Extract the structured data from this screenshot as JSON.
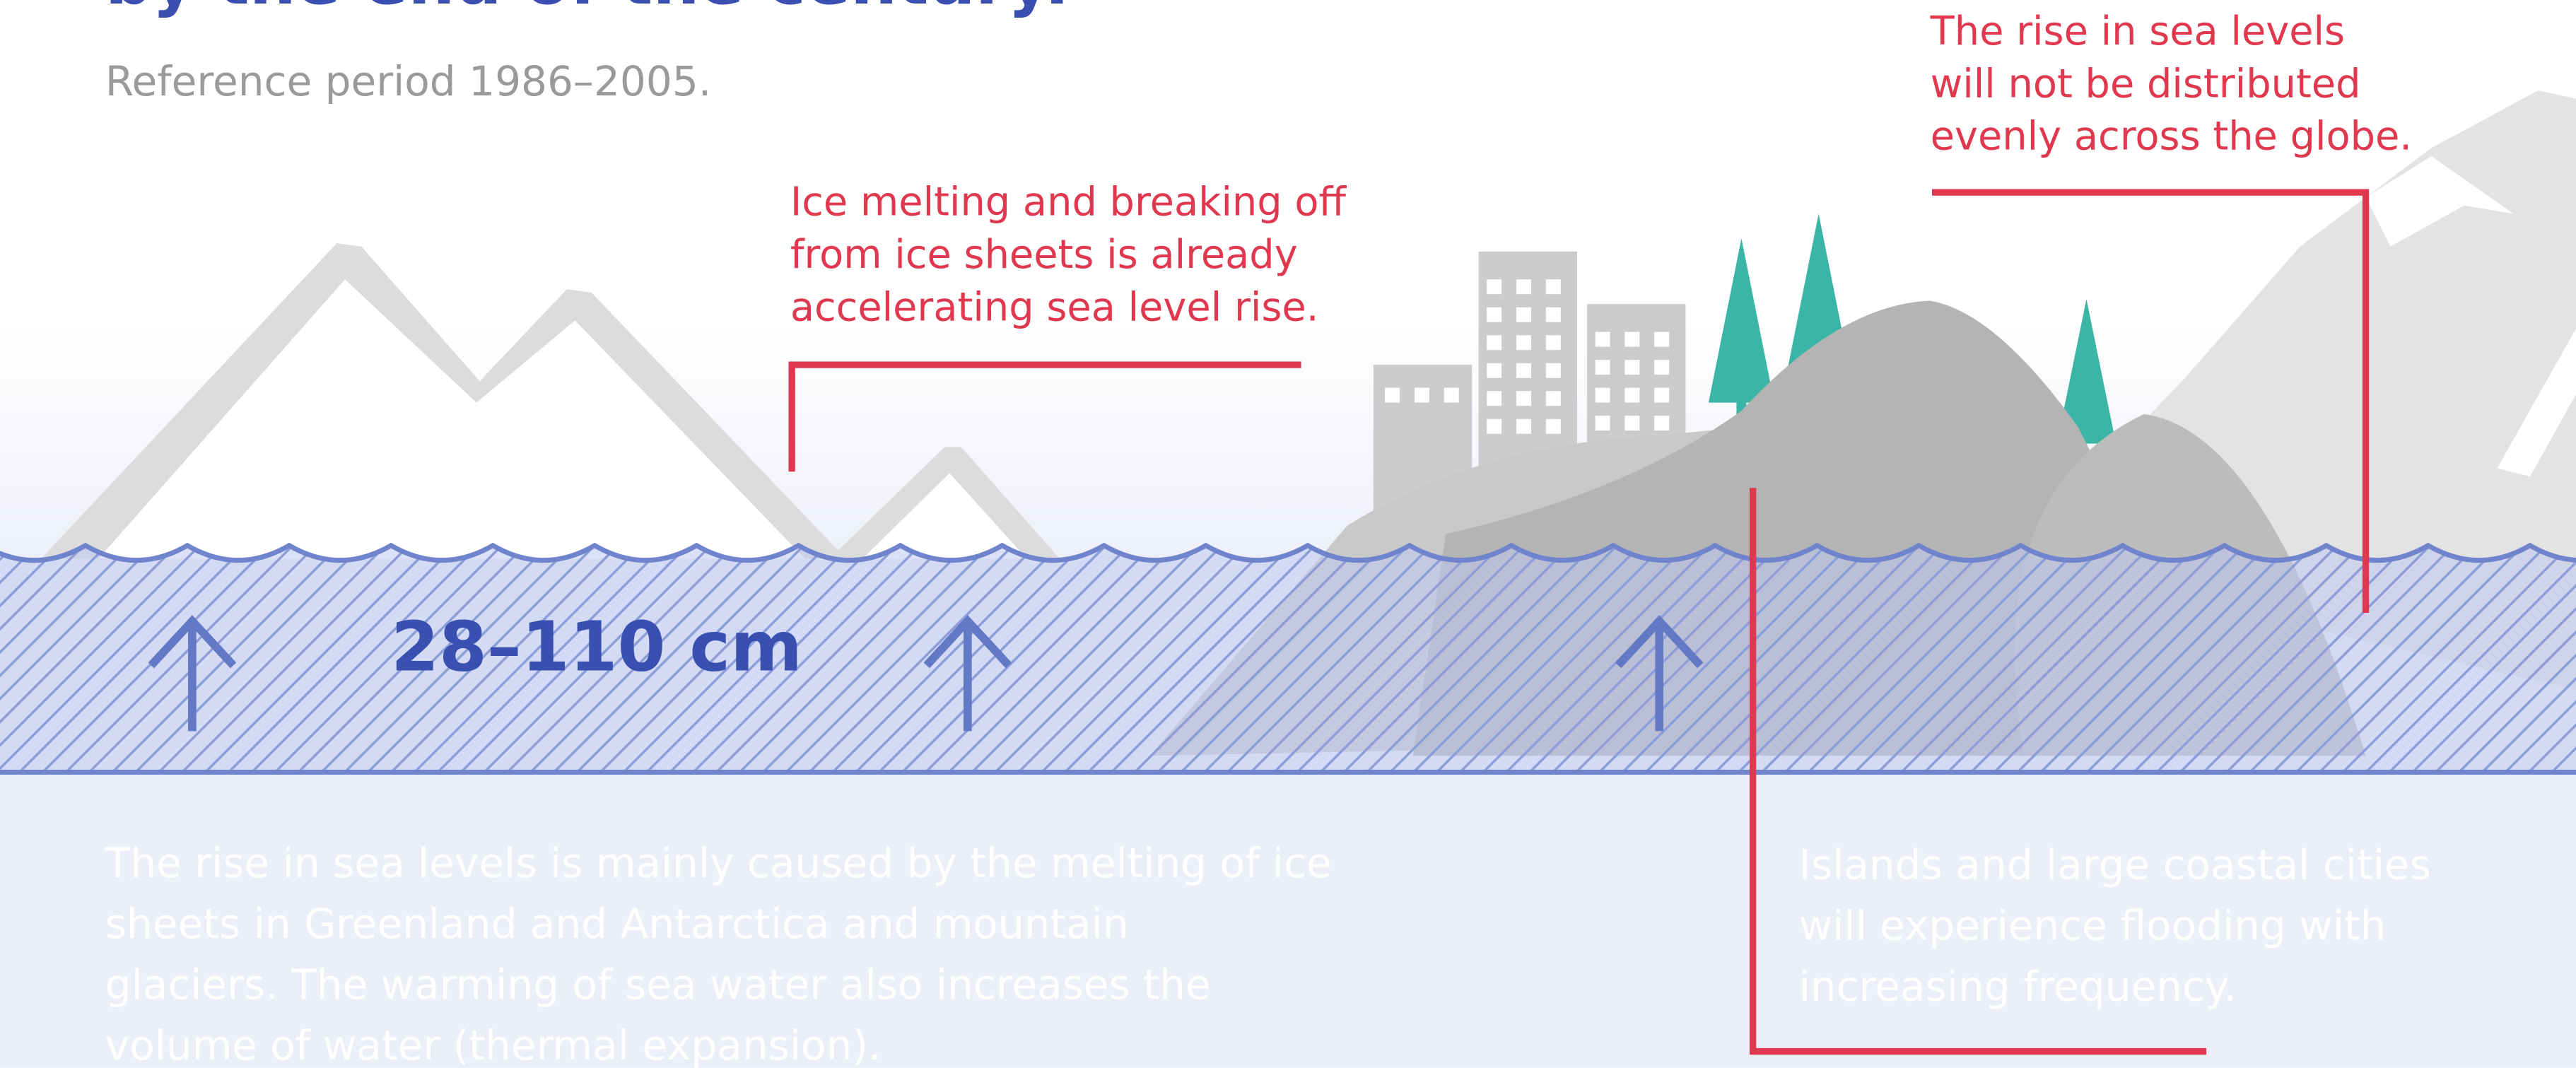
{
  "header": {
    "title": "by the end of the century.",
    "subtitle": "Reference period 1986–2005."
  },
  "callouts": [
    {
      "lines": [
        "Ice melting and breaking off",
        "from ice sheets is already",
        "accelerating sea level rise."
      ]
    },
    {
      "lines": [
        "The rise in sea levels",
        "will not be distributed",
        "evenly across the globe."
      ]
    },
    {
      "lines": [
        "Islands and large coastal cities",
        "will experience flooding with",
        "increasing frequency."
      ]
    }
  ],
  "rise_label": "28–110 cm",
  "body": {
    "lines": [
      "The rise in sea levels is mainly caused by the melting of ice",
      "sheets in Greenland and Antarctica and mountain",
      "glaciers. The warming of sea water also increases the",
      "volume of water (thermal expansion)."
    ]
  }
}
